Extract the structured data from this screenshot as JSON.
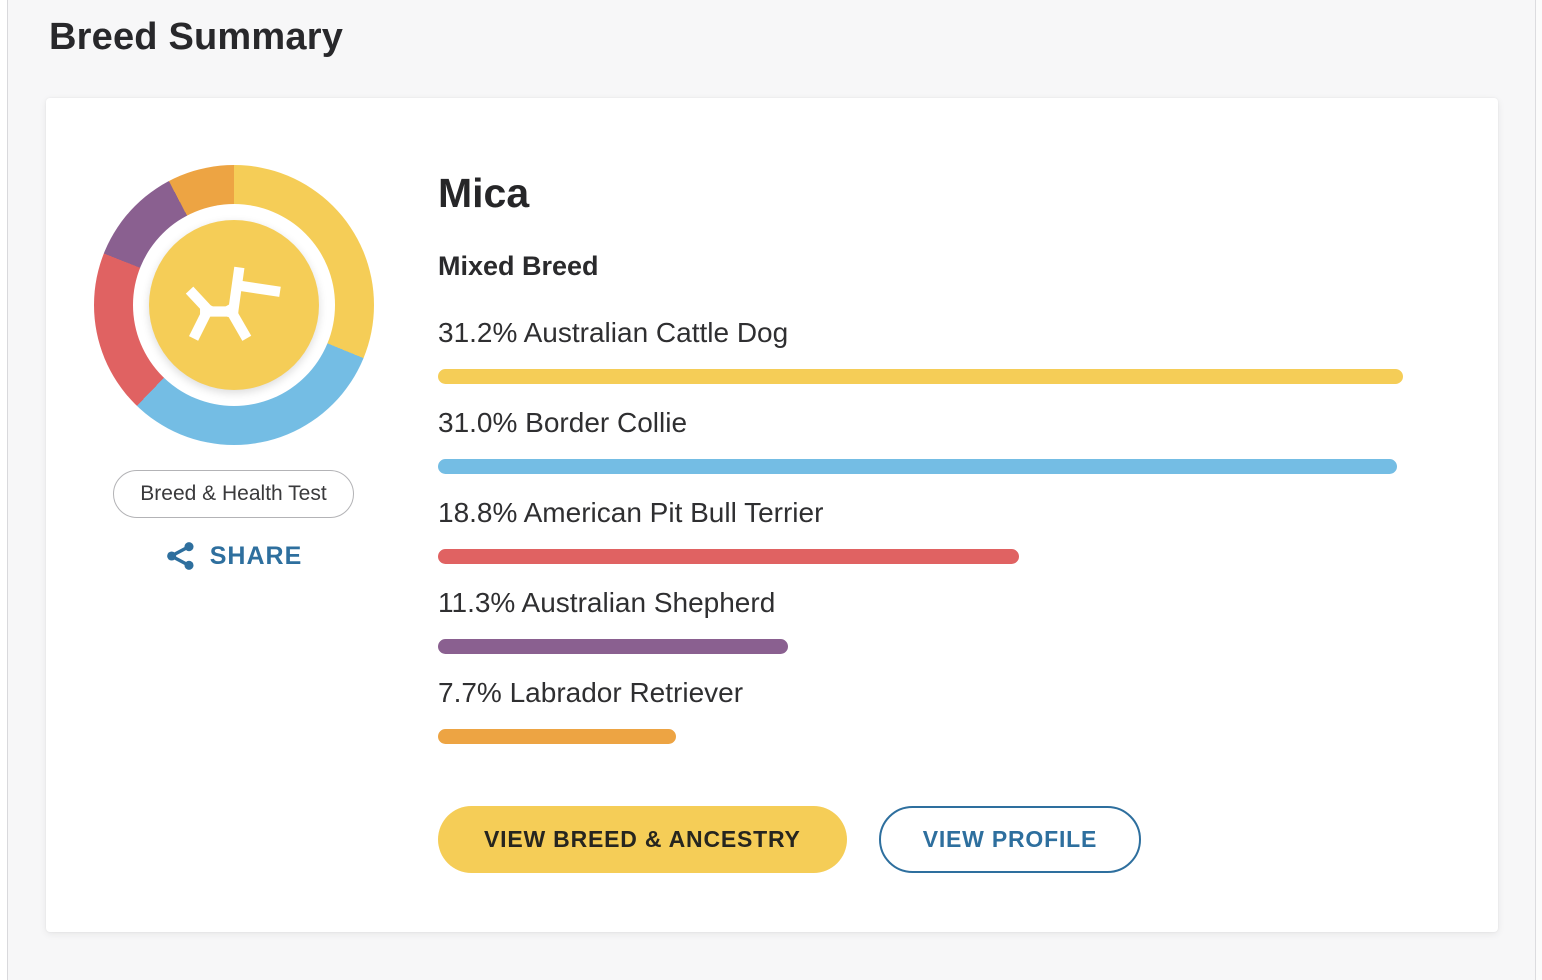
{
  "page": {
    "title": "Breed Summary"
  },
  "card": {
    "dog_name": "Mica",
    "breed_type": "Mixed Breed",
    "test_badge": "Breed & Health Test",
    "share_label": "SHARE",
    "buttons": {
      "primary": "VIEW BREED & ANCESTRY",
      "secondary": "VIEW PROFILE"
    }
  },
  "colors": {
    "page_background": "#f7f7f8",
    "card_background": "#ffffff",
    "heading_text": "#28282b",
    "share_blue": "#2e6f9e",
    "button_yellow": "#f5cd57",
    "button_text_dark": "#26251f",
    "badge_border": "#b3b3b6",
    "donut_center_yellow": "#f5cd57"
  },
  "chart_data": {
    "type": "pie",
    "title": "Breed composition donut (center logo: dog icon)",
    "legend_position": "right-list",
    "series": [
      {
        "name": "Australian Cattle Dog",
        "value": 31.2,
        "percent_label": "31.2%",
        "color": "#f5cd57"
      },
      {
        "name": "Border Collie",
        "value": 31.0,
        "percent_label": "31.0%",
        "color": "#74bde4"
      },
      {
        "name": "American Pit Bull Terrier",
        "value": 18.8,
        "percent_label": "18.8%",
        "color": "#e06262"
      },
      {
        "name": "Australian Shepherd",
        "value": 11.3,
        "percent_label": "11.3%",
        "color": "#8a6090"
      },
      {
        "name": "Labrador Retriever",
        "value": 7.7,
        "percent_label": "7.7%",
        "color": "#eda443"
      }
    ]
  }
}
